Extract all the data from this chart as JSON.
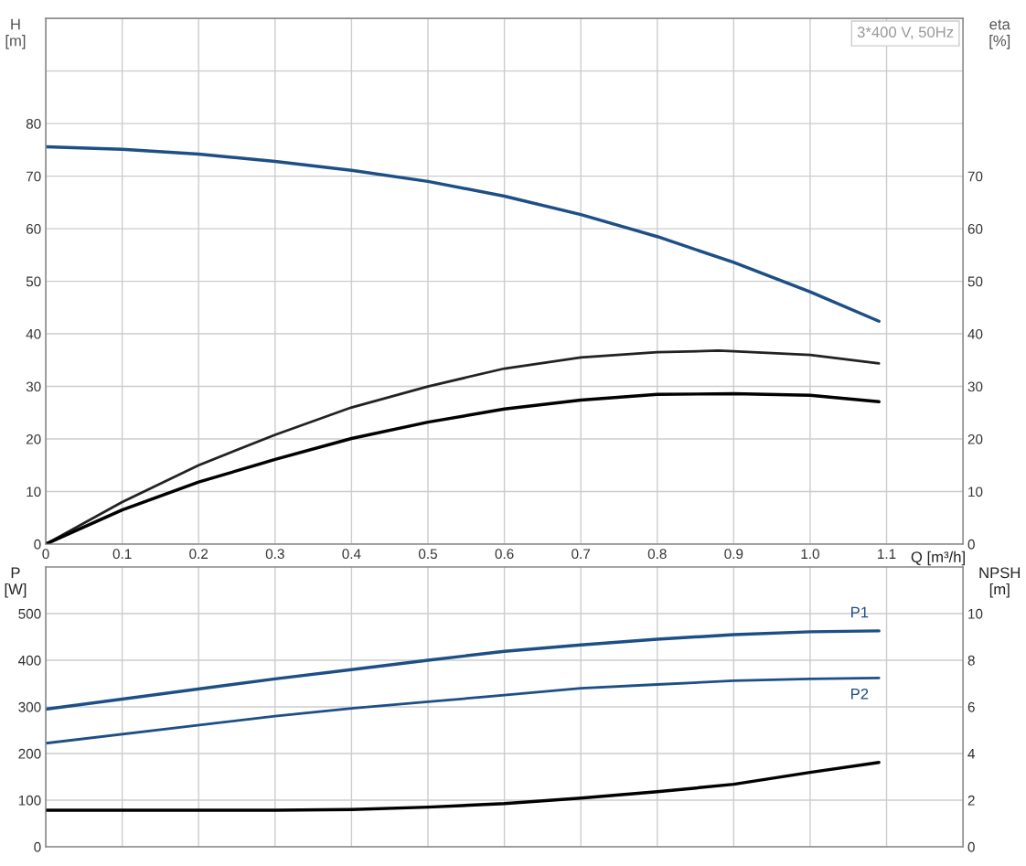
{
  "chart_data": [
    {
      "type": "line",
      "ylabel": "H\n[m]",
      "y2label": "eta\n[%]",
      "xlabel": "Q [m³/h]",
      "annotations": [
        "3*400 V, 50Hz"
      ],
      "xlim": [
        0,
        1.2
      ],
      "xticks": [
        0,
        0.1,
        0.2,
        0.3,
        0.4,
        0.5,
        0.6,
        0.7,
        0.8,
        0.9,
        {
          "value": 1.0,
          "label": "1.0"
        },
        1.1
      ],
      "ylim": [
        0,
        100
      ],
      "yticks": [
        0,
        10,
        20,
        30,
        40,
        50,
        60,
        70,
        80,
        {
          "value": 90,
          "label": null
        }
      ],
      "y2lim": [
        0,
        100
      ],
      "y2ticks": [
        0,
        10,
        20,
        30,
        40,
        50,
        60,
        70
      ],
      "grid": true,
      "legend": false,
      "series": [
        {
          "color": "#1d4f86",
          "x": [
            0,
            0.1,
            0.2,
            0.3,
            0.4,
            0.5,
            0.6,
            0.7,
            0.8,
            0.9,
            1.0,
            1.09
          ],
          "values": [
            75.6,
            75.1,
            74.2,
            72.8,
            71.1,
            69.0,
            66.2,
            62.7,
            58.5,
            53.6,
            48.0,
            42.4
          ]
        },
        {
          "color": "#222222",
          "axis": "y2",
          "x": [
            0,
            0.1,
            0.2,
            0.3,
            0.4,
            0.5,
            0.6,
            0.7,
            0.8,
            0.88,
            0.9,
            1.0,
            1.09
          ],
          "values": [
            0,
            8.0,
            15.0,
            20.8,
            26.0,
            30.0,
            33.4,
            35.5,
            36.5,
            36.8,
            36.7,
            36.0,
            34.4
          ]
        },
        {
          "color": "#000000",
          "axis": "y2",
          "x": [
            0,
            0.1,
            0.2,
            0.3,
            0.4,
            0.5,
            0.6,
            0.7,
            0.8,
            0.9,
            1.0,
            1.09
          ],
          "values": [
            0,
            6.5,
            11.8,
            16.1,
            20.1,
            23.2,
            25.7,
            27.4,
            28.5,
            28.6,
            28.3,
            27.1
          ]
        }
      ]
    },
    {
      "type": "line",
      "ylabel": "P\n[W]",
      "y2label": "NPSH\n[m]",
      "xlim": [
        0,
        1.2
      ],
      "xticks": [
        0,
        0.1,
        0.2,
        0.3,
        0.4,
        0.5,
        0.6,
        0.7,
        0.8,
        0.9,
        1.0,
        1.1
      ],
      "tick_labels": "y",
      "ylim": [
        0,
        600
      ],
      "yticks": [
        0,
        100,
        200,
        300,
        400,
        500
      ],
      "y2lim": [
        0,
        12
      ],
      "y2ticks": [
        0,
        2,
        4,
        6,
        8,
        10
      ],
      "grid": true,
      "legend": false,
      "series": [
        {
          "name": "P1",
          "color": "#1d4f86",
          "x": [
            0,
            0.3,
            0.4,
            0.5,
            0.6,
            0.7,
            0.8,
            0.9,
            1.0,
            1.09
          ],
          "values": [
            295,
            360,
            380,
            400,
            419,
            433,
            445,
            455,
            461,
            463
          ]
        },
        {
          "name": "P2",
          "color": "#1d4f86",
          "x": [
            0,
            0.3,
            0.4,
            0.5,
            0.6,
            0.7,
            0.8,
            0.9,
            1.0,
            1.09
          ],
          "values": [
            222,
            280,
            297,
            311,
            325,
            340,
            348,
            356,
            360,
            362
          ]
        },
        {
          "color": "#000000",
          "axis": "y2",
          "x": [
            0,
            0.2,
            0.3,
            0.4,
            0.5,
            0.6,
            0.7,
            0.8,
            0.9,
            1.0,
            1.09
          ],
          "values": [
            1.57,
            1.57,
            1.57,
            1.6,
            1.7,
            1.85,
            2.09,
            2.36,
            2.68,
            3.19,
            3.62
          ]
        }
      ]
    }
  ]
}
